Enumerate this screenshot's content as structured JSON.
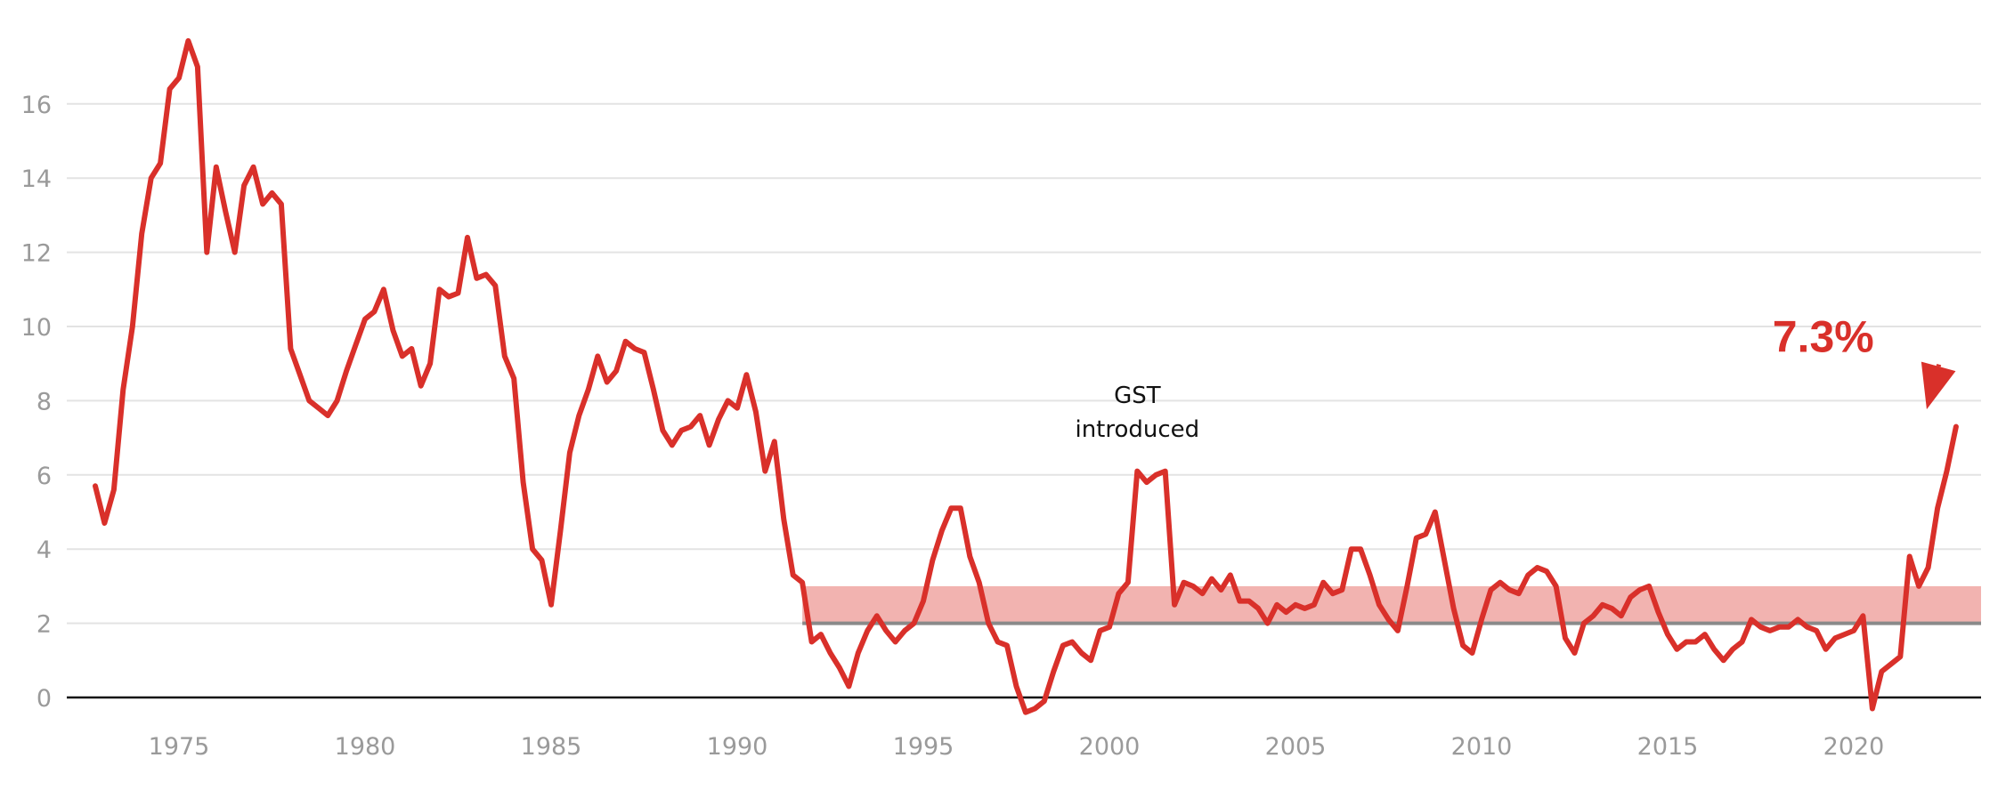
{
  "chart_data": {
    "type": "line",
    "title": "",
    "xlabel": "",
    "ylabel": "",
    "xlim": [
      1972.0,
      2023.4
    ],
    "ylim": [
      0,
      17.9
    ],
    "x_ticks": [
      1975,
      1980,
      1985,
      1990,
      1995,
      2000,
      2005,
      2010,
      2015,
      2020
    ],
    "y_ticks": [
      0,
      2,
      4,
      6,
      8,
      10,
      12,
      14,
      16
    ],
    "grid": true,
    "line_color": "#d9302a",
    "target_band": {
      "from": 2,
      "to": 3,
      "x_start": 1991.75,
      "color": "#f2b3b0",
      "baseline_color": "#8a8a8a"
    },
    "annotations": [
      {
        "text_lines": [
          "GST",
          "introduced"
        ],
        "x": 2000.75,
        "y": 7.7
      },
      {
        "text": "7.3%",
        "x": 2019.3,
        "y": 9.6,
        "color": "#d9302a",
        "arrow_to": [
          2022.75,
          7.6
        ]
      }
    ],
    "series": [
      {
        "points": [
          [
            1972.75,
            5.7
          ],
          [
            1973.0,
            4.7
          ],
          [
            1973.25,
            5.6
          ],
          [
            1973.5,
            8.3
          ],
          [
            1973.75,
            10.0
          ],
          [
            1974.0,
            12.5
          ],
          [
            1974.25,
            14.0
          ],
          [
            1974.5,
            14.4
          ],
          [
            1974.75,
            16.4
          ],
          [
            1975.0,
            16.7
          ],
          [
            1975.25,
            17.7
          ],
          [
            1975.5,
            17.0
          ],
          [
            1975.75,
            12.0
          ],
          [
            1976.0,
            14.3
          ],
          [
            1976.25,
            13.1
          ],
          [
            1976.5,
            12.0
          ],
          [
            1976.75,
            13.8
          ],
          [
            1977.0,
            14.3
          ],
          [
            1977.25,
            13.3
          ],
          [
            1977.5,
            13.6
          ],
          [
            1977.75,
            13.3
          ],
          [
            1978.0,
            9.4
          ],
          [
            1978.25,
            8.7
          ],
          [
            1978.5,
            8.0
          ],
          [
            1978.75,
            7.8
          ],
          [
            1979.0,
            7.6
          ],
          [
            1979.25,
            8.0
          ],
          [
            1979.5,
            8.8
          ],
          [
            1979.75,
            9.5
          ],
          [
            1980.0,
            10.2
          ],
          [
            1980.25,
            10.4
          ],
          [
            1980.5,
            11.0
          ],
          [
            1980.75,
            9.9
          ],
          [
            1981.0,
            9.2
          ],
          [
            1981.25,
            9.4
          ],
          [
            1981.5,
            8.4
          ],
          [
            1981.75,
            9.0
          ],
          [
            1982.0,
            11.0
          ],
          [
            1982.25,
            10.8
          ],
          [
            1982.5,
            10.9
          ],
          [
            1982.75,
            12.4
          ],
          [
            1983.0,
            11.3
          ],
          [
            1983.25,
            11.4
          ],
          [
            1983.5,
            11.1
          ],
          [
            1983.75,
            9.2
          ],
          [
            1984.0,
            8.6
          ],
          [
            1984.25,
            5.8
          ],
          [
            1984.5,
            4.0
          ],
          [
            1984.75,
            3.7
          ],
          [
            1985.0,
            2.5
          ],
          [
            1985.25,
            4.5
          ],
          [
            1985.5,
            6.6
          ],
          [
            1985.75,
            7.6
          ],
          [
            1986.0,
            8.3
          ],
          [
            1986.25,
            9.2
          ],
          [
            1986.5,
            8.5
          ],
          [
            1986.75,
            8.8
          ],
          [
            1987.0,
            9.6
          ],
          [
            1987.25,
            9.4
          ],
          [
            1987.5,
            9.3
          ],
          [
            1987.75,
            8.3
          ],
          [
            1988.0,
            7.2
          ],
          [
            1988.25,
            6.8
          ],
          [
            1988.5,
            7.2
          ],
          [
            1988.75,
            7.3
          ],
          [
            1989.0,
            7.6
          ],
          [
            1989.25,
            6.8
          ],
          [
            1989.5,
            7.5
          ],
          [
            1989.75,
            8.0
          ],
          [
            1990.0,
            7.8
          ],
          [
            1990.25,
            8.7
          ],
          [
            1990.5,
            7.7
          ],
          [
            1990.75,
            6.1
          ],
          [
            1991.0,
            6.9
          ],
          [
            1991.25,
            4.8
          ],
          [
            1991.5,
            3.3
          ],
          [
            1991.75,
            3.1
          ],
          [
            1992.0,
            1.5
          ],
          [
            1992.25,
            1.7
          ],
          [
            1992.5,
            1.2
          ],
          [
            1992.75,
            0.8
          ],
          [
            1993.0,
            0.3
          ],
          [
            1993.25,
            1.2
          ],
          [
            1993.5,
            1.8
          ],
          [
            1993.75,
            2.2
          ],
          [
            1994.0,
            1.8
          ],
          [
            1994.25,
            1.5
          ],
          [
            1994.5,
            1.8
          ],
          [
            1994.75,
            2.0
          ],
          [
            1995.0,
            2.6
          ],
          [
            1995.25,
            3.7
          ],
          [
            1995.5,
            4.5
          ],
          [
            1995.75,
            5.1
          ],
          [
            1996.0,
            5.1
          ],
          [
            1996.25,
            3.8
          ],
          [
            1996.5,
            3.1
          ],
          [
            1996.75,
            2.0
          ],
          [
            1997.0,
            1.5
          ],
          [
            1997.25,
            1.4
          ],
          [
            1997.5,
            0.3
          ],
          [
            1997.75,
            -0.4
          ],
          [
            1998.0,
            -0.3
          ],
          [
            1998.25,
            -0.1
          ],
          [
            1998.5,
            0.7
          ],
          [
            1998.75,
            1.4
          ],
          [
            1999.0,
            1.5
          ],
          [
            1999.25,
            1.2
          ],
          [
            1999.5,
            1.0
          ],
          [
            1999.75,
            1.8
          ],
          [
            2000.0,
            1.9
          ],
          [
            2000.25,
            2.8
          ],
          [
            2000.5,
            3.1
          ],
          [
            2000.75,
            6.1
          ],
          [
            2001.0,
            5.8
          ],
          [
            2001.25,
            6.0
          ],
          [
            2001.5,
            6.1
          ],
          [
            2001.75,
            2.5
          ],
          [
            2002.0,
            3.1
          ],
          [
            2002.25,
            3.0
          ],
          [
            2002.5,
            2.8
          ],
          [
            2002.75,
            3.2
          ],
          [
            2003.0,
            2.9
          ],
          [
            2003.25,
            3.3
          ],
          [
            2003.5,
            2.6
          ],
          [
            2003.75,
            2.6
          ],
          [
            2004.0,
            2.4
          ],
          [
            2004.25,
            2.0
          ],
          [
            2004.5,
            2.5
          ],
          [
            2004.75,
            2.3
          ],
          [
            2005.0,
            2.5
          ],
          [
            2005.25,
            2.4
          ],
          [
            2005.5,
            2.5
          ],
          [
            2005.75,
            3.1
          ],
          [
            2006.0,
            2.8
          ],
          [
            2006.25,
            2.9
          ],
          [
            2006.5,
            4.0
          ],
          [
            2006.75,
            4.0
          ],
          [
            2007.0,
            3.3
          ],
          [
            2007.25,
            2.5
          ],
          [
            2007.5,
            2.1
          ],
          [
            2007.75,
            1.8
          ],
          [
            2008.0,
            3.0
          ],
          [
            2008.25,
            4.3
          ],
          [
            2008.5,
            4.4
          ],
          [
            2008.75,
            5.0
          ],
          [
            2009.0,
            3.7
          ],
          [
            2009.25,
            2.4
          ],
          [
            2009.5,
            1.4
          ],
          [
            2009.75,
            1.2
          ],
          [
            2010.0,
            2.1
          ],
          [
            2010.25,
            2.9
          ],
          [
            2010.5,
            3.1
          ],
          [
            2010.75,
            2.9
          ],
          [
            2011.0,
            2.8
          ],
          [
            2011.25,
            3.3
          ],
          [
            2011.5,
            3.5
          ],
          [
            2011.75,
            3.4
          ],
          [
            2012.0,
            3.0
          ],
          [
            2012.25,
            1.6
          ],
          [
            2012.5,
            1.2
          ],
          [
            2012.75,
            2.0
          ],
          [
            2013.0,
            2.2
          ],
          [
            2013.25,
            2.5
          ],
          [
            2013.5,
            2.4
          ],
          [
            2013.75,
            2.2
          ],
          [
            2014.0,
            2.7
          ],
          [
            2014.25,
            2.9
          ],
          [
            2014.5,
            3.0
          ],
          [
            2014.75,
            2.3
          ],
          [
            2015.0,
            1.7
          ],
          [
            2015.25,
            1.3
          ],
          [
            2015.5,
            1.5
          ],
          [
            2015.75,
            1.5
          ],
          [
            2016.0,
            1.7
          ],
          [
            2016.25,
            1.3
          ],
          [
            2016.5,
            1.0
          ],
          [
            2016.75,
            1.3
          ],
          [
            2017.0,
            1.5
          ],
          [
            2017.25,
            2.1
          ],
          [
            2017.5,
            1.9
          ],
          [
            2017.75,
            1.8
          ],
          [
            2018.0,
            1.9
          ],
          [
            2018.25,
            1.9
          ],
          [
            2018.5,
            2.1
          ],
          [
            2018.75,
            1.9
          ],
          [
            2019.0,
            1.8
          ],
          [
            2019.25,
            1.3
          ],
          [
            2019.5,
            1.6
          ],
          [
            2019.75,
            1.7
          ],
          [
            2020.0,
            1.8
          ],
          [
            2020.25,
            2.2
          ],
          [
            2020.5,
            -0.3
          ],
          [
            2020.75,
            0.7
          ],
          [
            2021.0,
            0.9
          ],
          [
            2021.25,
            1.1
          ],
          [
            2021.5,
            3.8
          ],
          [
            2021.75,
            3.0
          ],
          [
            2022.0,
            3.5
          ],
          [
            2022.25,
            5.1
          ],
          [
            2022.5,
            6.1
          ],
          [
            2022.75,
            7.3
          ]
        ]
      }
    ]
  }
}
